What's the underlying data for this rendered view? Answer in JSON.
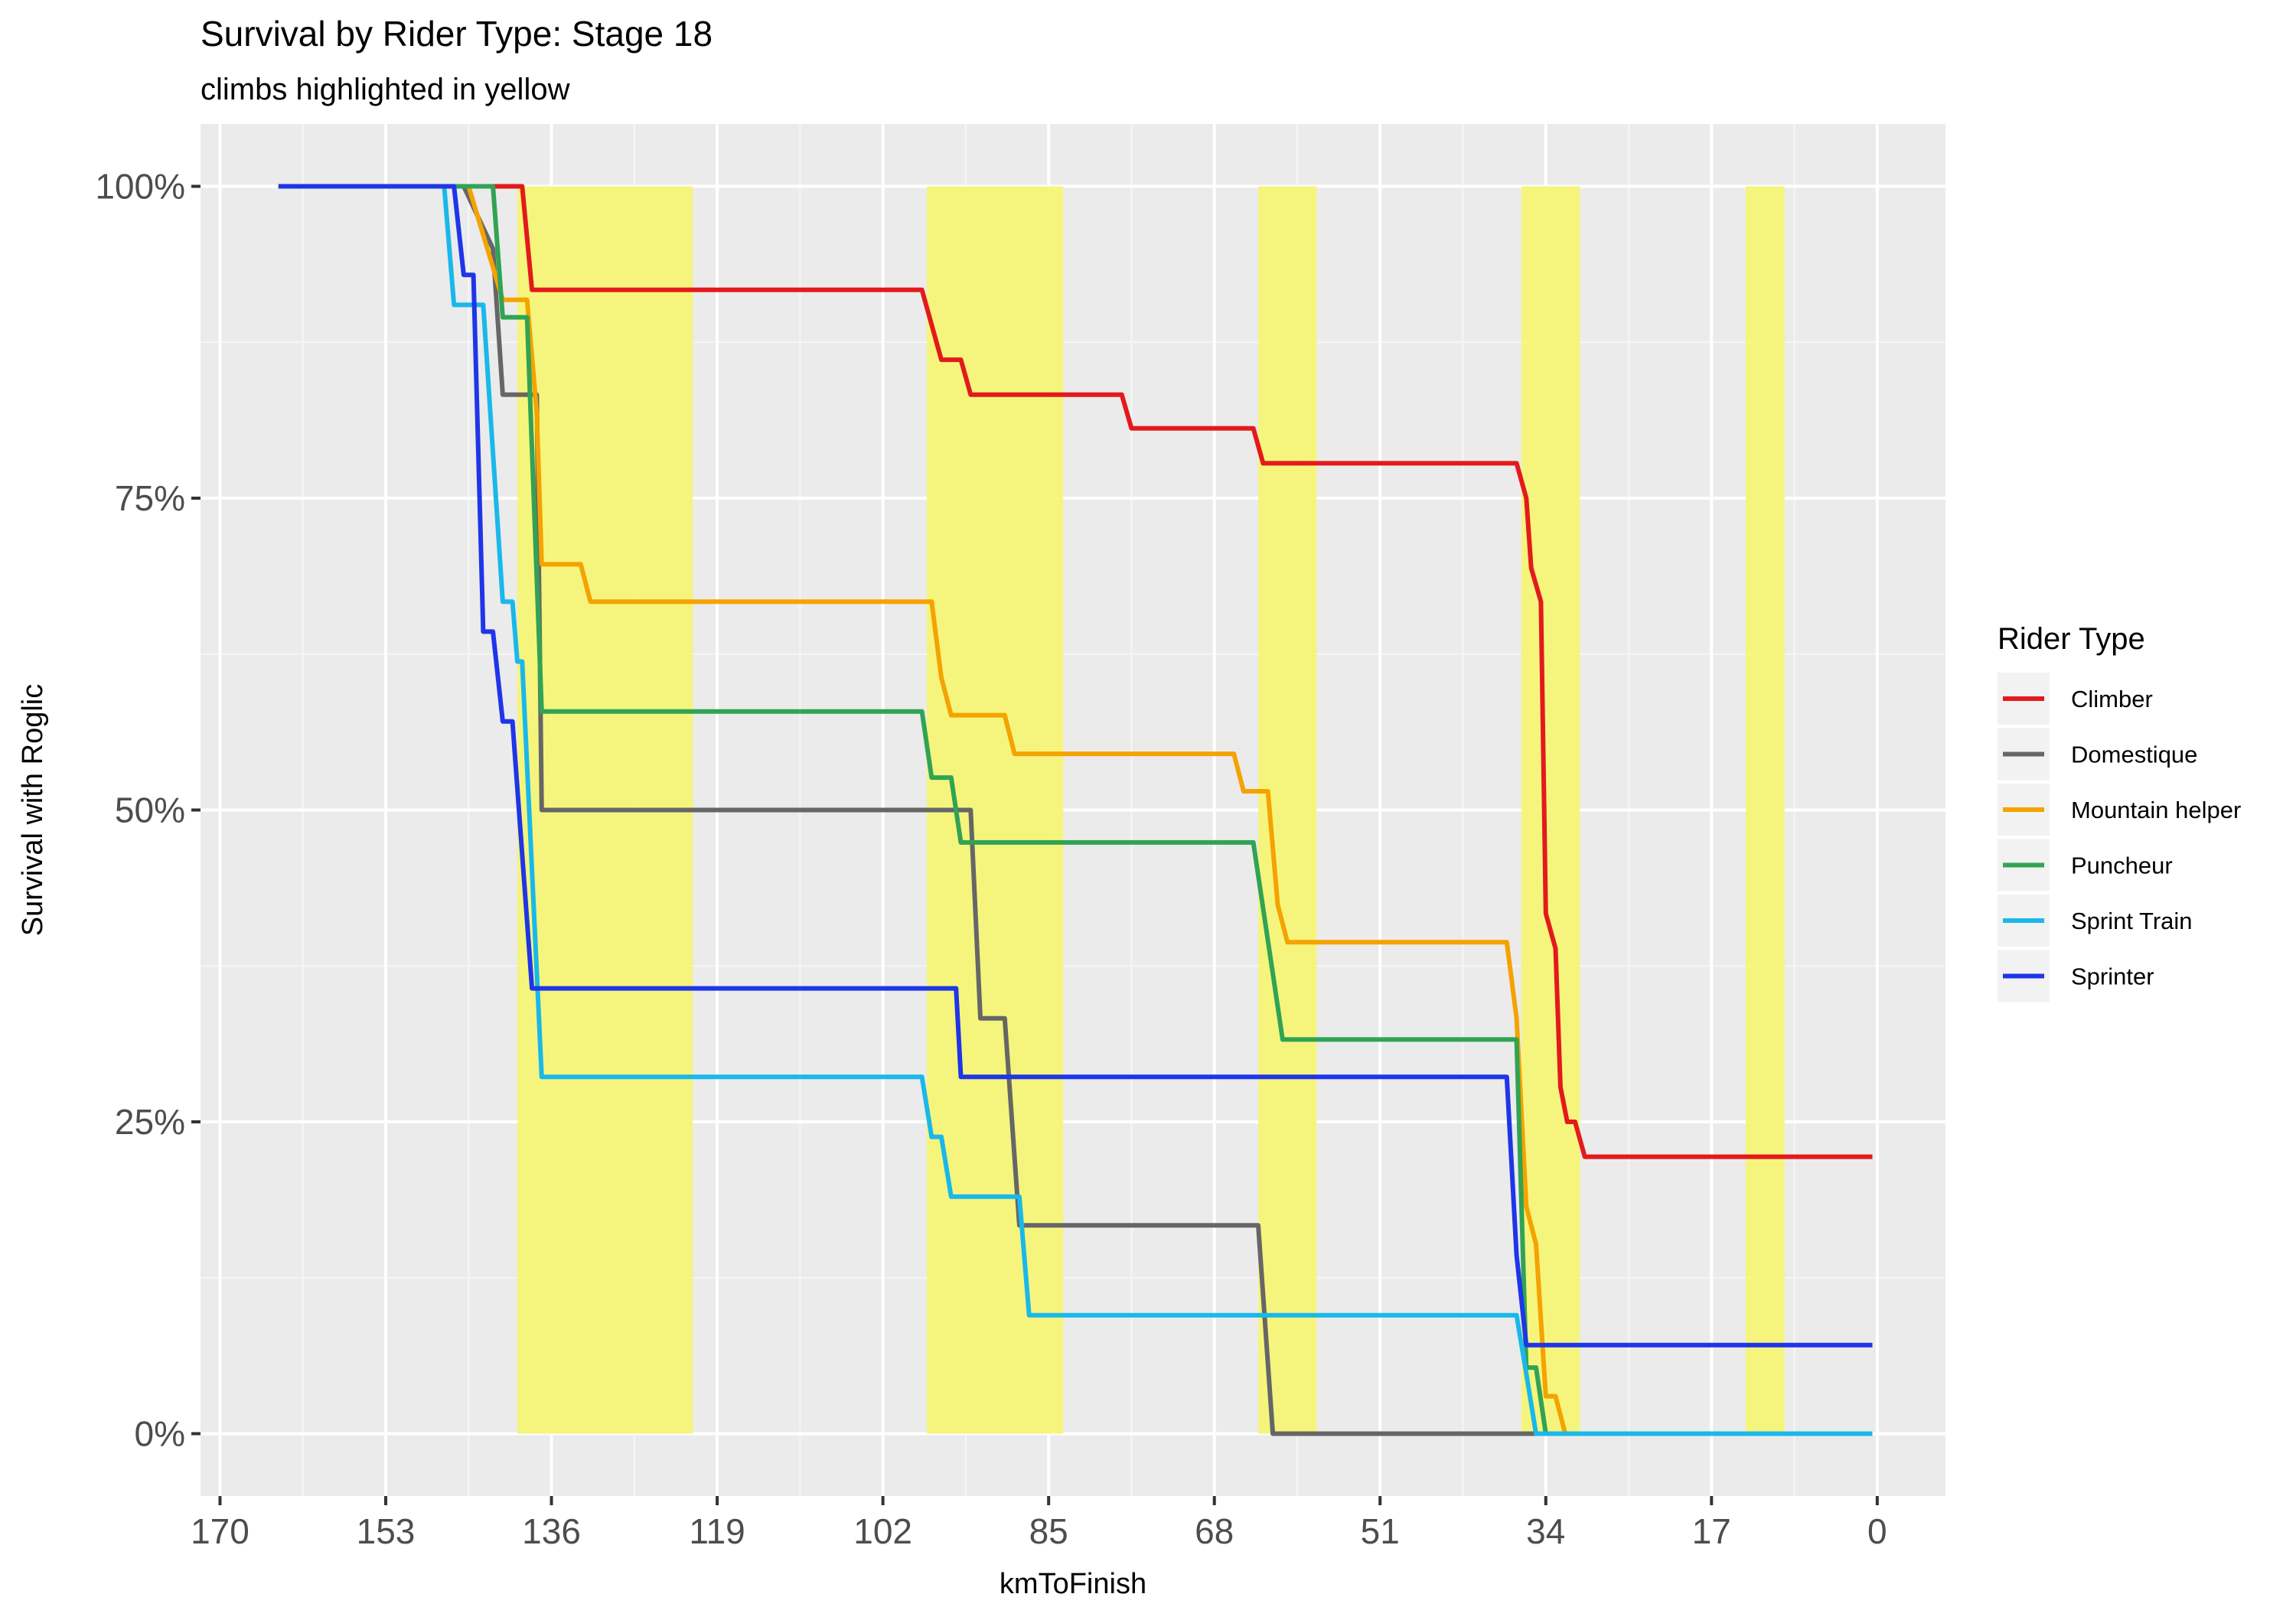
{
  "chart_data": {
    "type": "line",
    "title": "Survival by Rider Type: Stage 18",
    "subtitle": "climbs highlighted in yellow",
    "xlabel": "kmToFinish",
    "ylabel": "Survival with Roglic",
    "x_reversed": true,
    "xlim": [
      172,
      -7
    ],
    "ylim": [
      -0.05,
      1.05
    ],
    "x_ticks": [
      170,
      153,
      136,
      119,
      102,
      85,
      68,
      51,
      34,
      17,
      0
    ],
    "x_tick_labels": [
      "170",
      "153",
      "136",
      "119",
      "102",
      "85",
      "68",
      "51",
      "34",
      "17",
      "0"
    ],
    "y_ticks": [
      0,
      0.25,
      0.5,
      0.75,
      1.0
    ],
    "y_tick_labels": [
      "0%",
      "25%",
      "50%",
      "75%",
      "100%"
    ],
    "grid": true,
    "legend": {
      "title": "Rider Type",
      "position": "right"
    },
    "climbs": [
      [
        139.5,
        121.5
      ],
      [
        97.5,
        83.5
      ],
      [
        63.5,
        57.5
      ],
      [
        36.5,
        30.5
      ],
      [
        13.5,
        9.5
      ]
    ],
    "climb_color": "#f5f577",
    "series": [
      {
        "name": "Climber",
        "color": "#e31a1c",
        "points": [
          [
            164,
            1
          ],
          [
            139,
            1
          ],
          [
            138,
            0.917
          ],
          [
            98,
            0.917
          ],
          [
            96,
            0.861
          ],
          [
            94,
            0.861
          ],
          [
            93,
            0.833
          ],
          [
            77.5,
            0.833
          ],
          [
            76.5,
            0.806
          ],
          [
            64,
            0.806
          ],
          [
            63,
            0.778
          ],
          [
            37,
            0.778
          ],
          [
            36,
            0.75
          ],
          [
            35.5,
            0.694
          ],
          [
            34.5,
            0.667
          ],
          [
            34,
            0.417
          ],
          [
            33,
            0.389
          ],
          [
            32.5,
            0.278
          ],
          [
            31.8,
            0.25
          ],
          [
            31,
            0.25
          ],
          [
            30,
            0.222
          ],
          [
            0.5,
            0.222
          ]
        ]
      },
      {
        "name": "Domestique",
        "color": "#666666",
        "points": [
          [
            164,
            1
          ],
          [
            145,
            1
          ],
          [
            142,
            0.95
          ],
          [
            141,
            0.833
          ],
          [
            137.5,
            0.833
          ],
          [
            137,
            0.5
          ],
          [
            93,
            0.5
          ],
          [
            92,
            0.333
          ],
          [
            89.5,
            0.333
          ],
          [
            88,
            0.167
          ],
          [
            63.5,
            0.167
          ],
          [
            62,
            0
          ],
          [
            0.5,
            0
          ]
        ]
      },
      {
        "name": "Mountain helper",
        "color": "#f4a300",
        "points": [
          [
            164,
            1
          ],
          [
            144.5,
            1
          ],
          [
            141,
            0.909
          ],
          [
            138.5,
            0.909
          ],
          [
            137.5,
            0.818
          ],
          [
            137,
            0.697
          ],
          [
            133,
            0.697
          ],
          [
            132,
            0.667
          ],
          [
            97,
            0.667
          ],
          [
            96,
            0.606
          ],
          [
            95,
            0.576
          ],
          [
            89.5,
            0.576
          ],
          [
            88.5,
            0.545
          ],
          [
            66,
            0.545
          ],
          [
            65,
            0.515
          ],
          [
            62.5,
            0.515
          ],
          [
            61.5,
            0.424
          ],
          [
            60.5,
            0.394
          ],
          [
            38,
            0.394
          ],
          [
            37,
            0.333
          ],
          [
            36,
            0.182
          ],
          [
            35,
            0.152
          ],
          [
            34,
            0.03
          ],
          [
            33,
            0.03
          ],
          [
            32,
            0
          ],
          [
            0.5,
            0
          ]
        ]
      },
      {
        "name": "Puncheur",
        "color": "#31a354",
        "points": [
          [
            164,
            1
          ],
          [
            142,
            1
          ],
          [
            141,
            0.895
          ],
          [
            138.5,
            0.895
          ],
          [
            137,
            0.579
          ],
          [
            98,
            0.579
          ],
          [
            97,
            0.526
          ],
          [
            95,
            0.526
          ],
          [
            94,
            0.474
          ],
          [
            64,
            0.474
          ],
          [
            61,
            0.316
          ],
          [
            37,
            0.316
          ],
          [
            36,
            0.053
          ],
          [
            35,
            0.053
          ],
          [
            34,
            0
          ],
          [
            0.5,
            0
          ]
        ]
      },
      {
        "name": "Sprint Train",
        "color": "#1ab8ea",
        "points": [
          [
            164,
            1
          ],
          [
            147,
            1
          ],
          [
            146,
            0.905
          ],
          [
            143,
            0.905
          ],
          [
            141,
            0.667
          ],
          [
            140,
            0.667
          ],
          [
            139.5,
            0.619
          ],
          [
            139,
            0.619
          ],
          [
            137,
            0.286
          ],
          [
            98,
            0.286
          ],
          [
            97,
            0.238
          ],
          [
            96,
            0.238
          ],
          [
            95,
            0.19
          ],
          [
            88,
            0.19
          ],
          [
            87,
            0.095
          ],
          [
            37,
            0.095
          ],
          [
            36,
            0.048
          ],
          [
            35,
            0
          ],
          [
            0.5,
            0
          ]
        ]
      },
      {
        "name": "Sprinter",
        "color": "#1f35e8",
        "points": [
          [
            164,
            1
          ],
          [
            146,
            1
          ],
          [
            145,
            0.929
          ],
          [
            144,
            0.929
          ],
          [
            143,
            0.643
          ],
          [
            142,
            0.643
          ],
          [
            141,
            0.571
          ],
          [
            140,
            0.571
          ],
          [
            138,
            0.357
          ],
          [
            94.5,
            0.357
          ],
          [
            94,
            0.286
          ],
          [
            38,
            0.286
          ],
          [
            37,
            0.143
          ],
          [
            36,
            0.071
          ],
          [
            0.5,
            0.071
          ]
        ]
      }
    ]
  }
}
